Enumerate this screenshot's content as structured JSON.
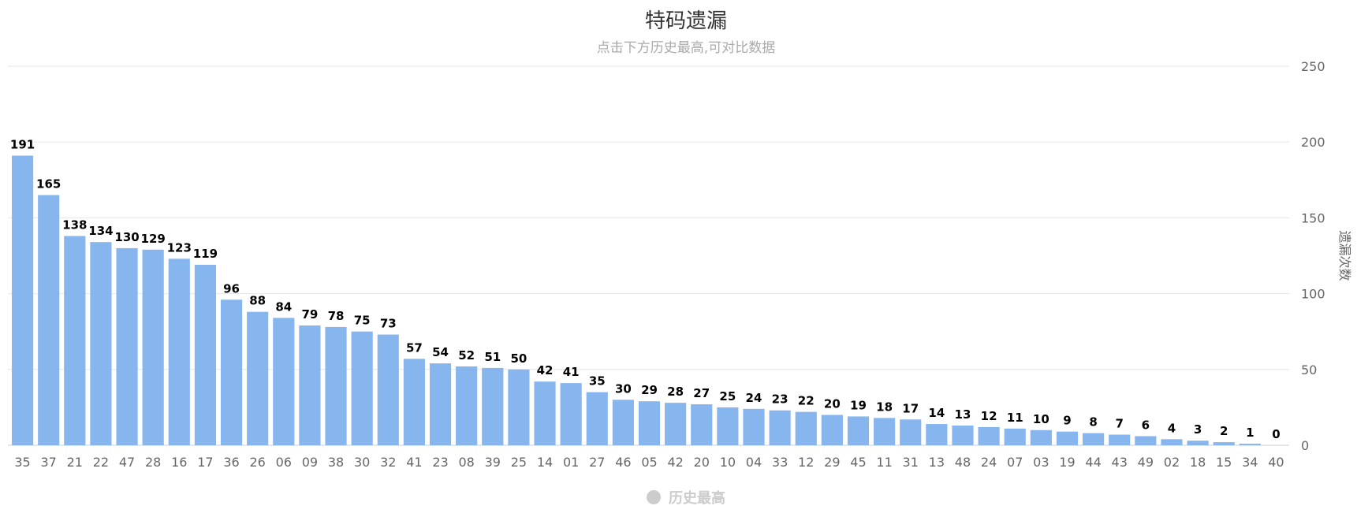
{
  "chart_data": {
    "type": "bar",
    "title": "特码遗漏",
    "subtitle": "点击下方历史最高,可对比数据",
    "ylabel": "遗漏次数",
    "ylim": [
      0,
      250
    ],
    "yticks": [
      0,
      50,
      100,
      150,
      200,
      250
    ],
    "y_axis_position": "right",
    "grid": true,
    "data_labels": true,
    "categories": [
      "35",
      "37",
      "21",
      "22",
      "47",
      "28",
      "16",
      "17",
      "36",
      "26",
      "06",
      "09",
      "38",
      "30",
      "32",
      "41",
      "23",
      "08",
      "39",
      "25",
      "14",
      "01",
      "27",
      "46",
      "05",
      "42",
      "20",
      "10",
      "04",
      "33",
      "12",
      "29",
      "45",
      "11",
      "31",
      "13",
      "48",
      "24",
      "07",
      "03",
      "19",
      "44",
      "43",
      "49",
      "02",
      "18",
      "15",
      "34",
      "40"
    ],
    "values": [
      191,
      165,
      138,
      134,
      130,
      129,
      123,
      119,
      96,
      88,
      84,
      79,
      78,
      75,
      73,
      57,
      54,
      52,
      51,
      50,
      42,
      41,
      35,
      30,
      29,
      28,
      27,
      25,
      24,
      23,
      22,
      20,
      19,
      18,
      17,
      14,
      13,
      12,
      11,
      10,
      9,
      8,
      7,
      6,
      4,
      3,
      2,
      1,
      0
    ],
    "bar_color": "#87b5ee",
    "legend": {
      "placement": "bottom-center",
      "items": [
        {
          "label": "历史最高",
          "color": "#cccccc",
          "active": false
        }
      ]
    }
  }
}
